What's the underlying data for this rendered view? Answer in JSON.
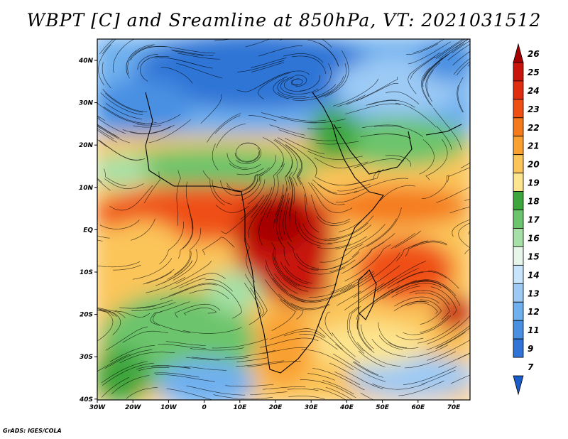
{
  "title": "WBPT [C] and Sreamline at 850hPa, VT: 2021031512",
  "footer": "GrADS: IGES/COLA",
  "lat_ticks": [
    "40N",
    "30N",
    "20N",
    "10N",
    "EQ",
    "10S",
    "20S",
    "30S",
    "40S"
  ],
  "lon_ticks": [
    "30W",
    "20W",
    "10W",
    "0",
    "10E",
    "20E",
    "30E",
    "40E",
    "50E",
    "60E",
    "70E"
  ],
  "colorbar": {
    "levels": [
      "26",
      "25",
      "24",
      "23",
      "22",
      "21",
      "20",
      "19",
      "18",
      "17",
      "16",
      "15",
      "14",
      "13",
      "12",
      "11",
      "9",
      "7"
    ],
    "colors": [
      "#a50000",
      "#c8140a",
      "#e02d10",
      "#ef4f12",
      "#f47a1c",
      "#f9a030",
      "#fbc55a",
      "#fde58f",
      "#3ca63c",
      "#6cc46c",
      "#a6e0a6",
      "#e6f7ea",
      "#c8e4fb",
      "#9ccaf5",
      "#6fb0ee",
      "#4a90e2",
      "#2f74d6",
      "#1a5cc8"
    ]
  }
}
